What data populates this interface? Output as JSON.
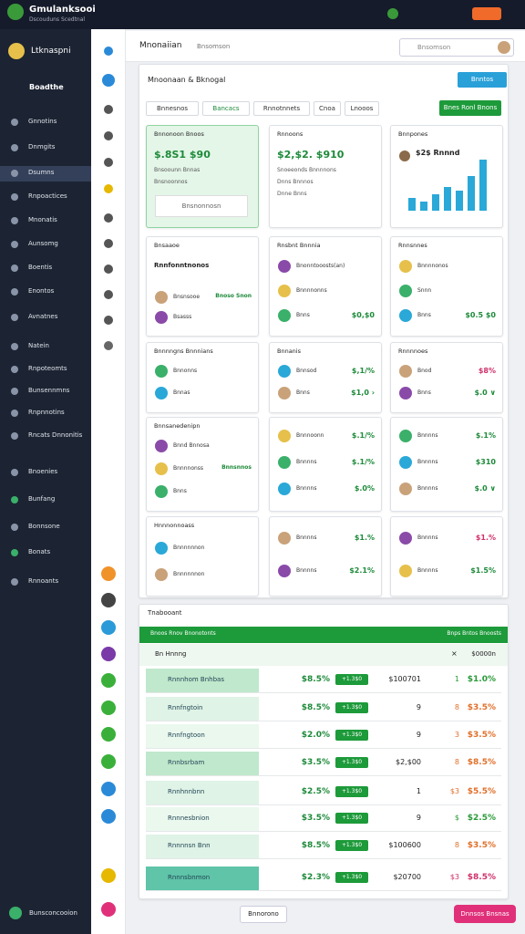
{
  "topbar": {
    "title": "Gmulanksooi",
    "subtitle": "Dscouduns Scedtnal"
  },
  "sidebar": {
    "user": "Ltknaspni",
    "section": "Boadthe",
    "items": [
      "Gnnotins",
      "Dnmgits",
      "Dsumns",
      "Rnpoactices",
      "Mnonatis",
      "Aunsomg",
      "Boentis",
      "Enontos",
      "Avnatnes",
      "Natein",
      "Rnpoteomts",
      "Bunsennmns",
      "Rnpnnotins",
      "Rncats Dnnonitis",
      "Bnoenies",
      "Bunfang",
      "Bonnsone",
      "Bonats",
      "Rnnoants"
    ],
    "footer": "Bunsconcooion"
  },
  "header": {
    "title": "Mnonaiian",
    "crumb": "Bnsomson",
    "search": "Bnsomson"
  },
  "panel": {
    "title": "Mnoonaan & Bknogal",
    "button": "Bnntos",
    "tabs": [
      "Bnnesnos",
      "Bancacs",
      "Rnnotnnets",
      "Cnoa",
      "Lnooos"
    ],
    "tab_button": "Bnes Ronl Bnons"
  },
  "cards": [
    {
      "title": "Bnnonoon Bnoos",
      "big": "$.8S1 $90",
      "lines": [
        "Bnsoounn Bnnas",
        "Bnsnoonnos"
      ],
      "button": "Bnsnonnosn"
    },
    {
      "title": "Rnnoons",
      "big": "$2,$2. $910",
      "lines": [
        "Snoeeonds Bnnnnons",
        "Dnns Bnnnos",
        "Dnne Bnns"
      ]
    },
    {
      "title": "Bnnpones",
      "big": "$2$ Rnnnd"
    },
    {
      "title": "Bnsaaoe",
      "subtitle": "Rnnfonntnonos",
      "rows": [
        {
          "label": "Bnsnsooe",
          "value": "Bnoso Snon"
        },
        {
          "label": "Bsasss"
        }
      ]
    },
    {
      "title": "Rnsbnt Bnnnia",
      "rows": [
        {
          "label": "Bnonntooosts(an)"
        },
        {
          "label": "Bnnnnonns"
        },
        {
          "label": "Bnns",
          "value": "$0,$0"
        }
      ]
    },
    {
      "title": "Rnnsnnes",
      "rows": [
        {
          "label": "Bnnnnonos"
        },
        {
          "label": "Snnn"
        },
        {
          "label": "Bnns",
          "value": "$0.5 $0"
        }
      ]
    },
    {
      "title": "Bnnnngns Bnnnians",
      "rows": [
        {
          "label": "Bnnonns"
        },
        {
          "label": "Bnnas"
        }
      ]
    },
    {
      "title": "Bnnanis",
      "rows": [
        {
          "label": "Bnnsod",
          "value": "$,1/%"
        },
        {
          "label": "Bnns",
          "value": "$1,0 ›"
        }
      ]
    },
    {
      "title": "Rnnnnoes",
      "rows": [
        {
          "label": "Bnod",
          "value": "$8%"
        },
        {
          "label": "Bnns",
          "value": "$.0 ∨"
        }
      ]
    },
    {
      "title": "Bnnsanedenipn",
      "rows": [
        {
          "label": "Bnnd Bnnosa"
        },
        {
          "label": "Bnnnnonss",
          "value": "Bnnsnnos"
        },
        {
          "label": "Bnns"
        }
      ]
    },
    {
      "rows": [
        {
          "label": "Bnnnoonn",
          "value": "$.1/%"
        },
        {
          "label": "Bnnnns",
          "value": "$.1/%"
        },
        {
          "label": "Bnnnns",
          "value": "$.0%"
        }
      ]
    },
    {
      "rows": [
        {
          "label": "Bnnnns",
          "value": "$.1%"
        },
        {
          "label": "Bnnnns",
          "value": "$310"
        },
        {
          "label": "Bnnnns",
          "value": "$.0 ∨"
        }
      ]
    },
    {
      "title": "Hnnnonnoass",
      "rows": [
        {
          "label": "Bnnnnnnon"
        },
        {
          "label": "Bnnnnnnon"
        }
      ]
    },
    {
      "rows": [
        {
          "label": "Bnnnns",
          "value": "$1.%"
        },
        {
          "label": "Bnnnns",
          "value": "$2.1%"
        }
      ]
    },
    {
      "rows": [
        {
          "label": "Bnnnns",
          "value": "$1.%"
        },
        {
          "label": "Bnnnns",
          "value": "$1.5%"
        }
      ]
    }
  ],
  "table": {
    "title": "Tnabooant",
    "left_header": "Bnoos Rnov Bnonotonts",
    "right_header": "Bnps Bntos Bnoosts",
    "sub_left": "Bn Hnnng",
    "sub_mid": "×",
    "sub_right": "$0000n",
    "rows": [
      {
        "cells": [
          "Rnnnhom Bnhbas",
          "$8.5%",
          "+1.3$0",
          "$100701",
          "1",
          "$1.0%"
        ],
        "color": "#2a9a3a"
      },
      {
        "cells": [
          "Rnnfngtoin",
          "$8.5%",
          "+1.3$0",
          "9",
          "8",
          "$3.5%"
        ],
        "color": "#e0702a"
      },
      {
        "cells": [
          "Rnnfngtoon",
          "$2.0%",
          "+1.3$0",
          "9",
          "3",
          "$3.5%"
        ],
        "color": "#e0702a"
      },
      {
        "cells": [
          "Rnnbsrbam",
          "$3.5%",
          "+1.3$0",
          "$2,$00",
          "8",
          "$8.5%"
        ],
        "color": "#e0702a"
      },
      {
        "cells": [
          "Rnnhnnbnn",
          "$2.5%",
          "+1.3$0",
          "1",
          "$3",
          "$5.5%"
        ],
        "color": "#e0702a"
      },
      {
        "cells": [
          "Rnnnesbnion",
          "$3.5%",
          "+1.3$0",
          "9",
          "$",
          "$2.5%"
        ],
        "color": "#2a9a3a"
      },
      {
        "cells": [
          "Rnnnnsn Bnn",
          "$8.5%",
          "+1.3$0",
          "$100600",
          "8",
          "$3.5%"
        ],
        "color": "#e0702a"
      },
      {
        "cells": [
          "Rnnnsbnmon",
          "$2.3%",
          "+1.3$0",
          "$20700",
          "$3",
          "$8.5%"
        ],
        "color": "#d0306a"
      }
    ]
  },
  "footer": {
    "button": "Bnnorono",
    "action": "Dnnsos Bnsnas"
  }
}
